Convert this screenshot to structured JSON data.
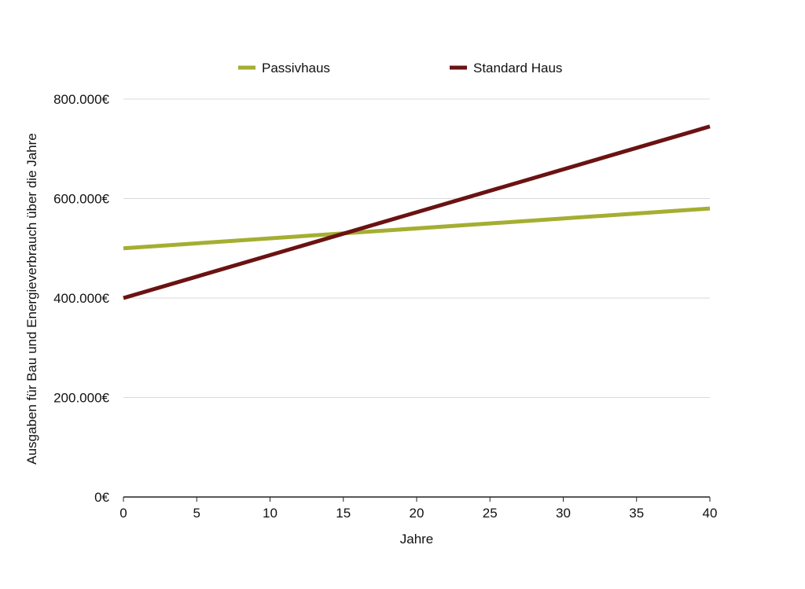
{
  "chart_data": {
    "type": "line",
    "title": "",
    "xlabel": "Jahre",
    "ylabel": "Ausgaben für Bau und Energieverbrauch über die Jahre",
    "xlim": [
      0,
      40
    ],
    "ylim": [
      0,
      800000
    ],
    "x_ticks": [
      {
        "value": 0,
        "label": "0"
      },
      {
        "value": 5,
        "label": "5"
      },
      {
        "value": 10,
        "label": "10"
      },
      {
        "value": 15,
        "label": "15"
      },
      {
        "value": 20,
        "label": "20"
      },
      {
        "value": 25,
        "label": "25"
      },
      {
        "value": 30,
        "label": "30"
      },
      {
        "value": 35,
        "label": "35"
      },
      {
        "value": 40,
        "label": "40"
      }
    ],
    "y_ticks": [
      {
        "value": 0,
        "label": "0€"
      },
      {
        "value": 200000,
        "label": "200.000€"
      },
      {
        "value": 400000,
        "label": "400.000€"
      },
      {
        "value": 600000,
        "label": "600.000€"
      },
      {
        "value": 800000,
        "label": "800.000€"
      }
    ],
    "grid": true,
    "legend_position": "top",
    "series": [
      {
        "name": "Passivhaus",
        "color": "#a4ae32",
        "x": [
          0,
          40
        ],
        "y": [
          500000,
          580000
        ]
      },
      {
        "name": "Standard Haus",
        "color": "#6b1212",
        "x": [
          0,
          40
        ],
        "y": [
          400000,
          745000
        ]
      }
    ]
  }
}
